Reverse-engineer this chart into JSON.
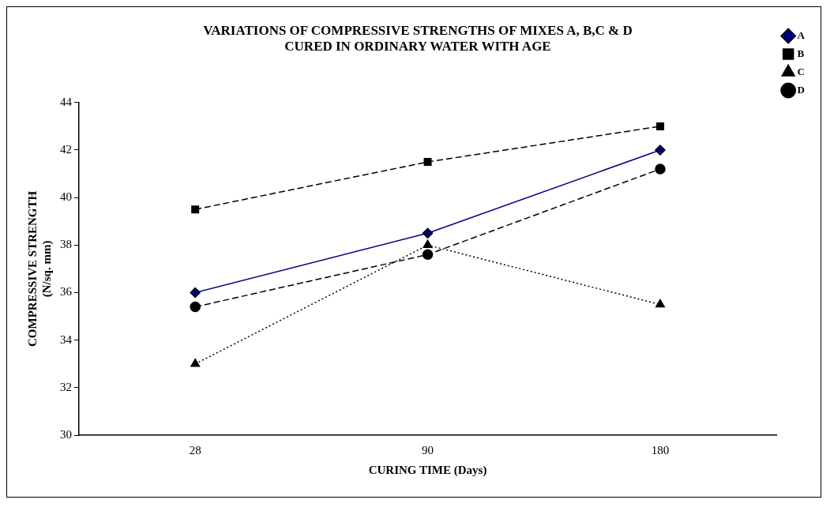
{
  "chart_data": {
    "type": "line",
    "title": "VARIATIONS OF COMPRESSIVE STRENGTHS OF MIXES A, B,C & D\nCURED IN ORDINARY WATER WITH AGE",
    "xlabel": "CURING TIME (Days)",
    "ylabel": "COMPRESSIVE STRENGTH\n(N/sq. mm)",
    "categories": [
      "28",
      "90",
      "180"
    ],
    "ylim": [
      30,
      44
    ],
    "yticks": [
      30,
      32,
      34,
      36,
      38,
      40,
      42,
      44
    ],
    "grid": false,
    "legend": "top right",
    "series": [
      {
        "name": "A",
        "color": "#000080",
        "values": [
          36,
          38.5,
          42
        ],
        "marker": "diamond",
        "line_style": "solid"
      },
      {
        "name": "B",
        "color": "#000000",
        "values": [
          39.5,
          41.5,
          43
        ],
        "marker": "square",
        "line_style": "dashed"
      },
      {
        "name": "C",
        "color": "#000000",
        "values": [
          33,
          38,
          35.5
        ],
        "marker": "triangle",
        "line_style": "dotted"
      },
      {
        "name": "D",
        "color": "#000000",
        "values": [
          35.4,
          37.6,
          41.2
        ],
        "marker": "circle",
        "line_style": "dashed"
      }
    ]
  }
}
